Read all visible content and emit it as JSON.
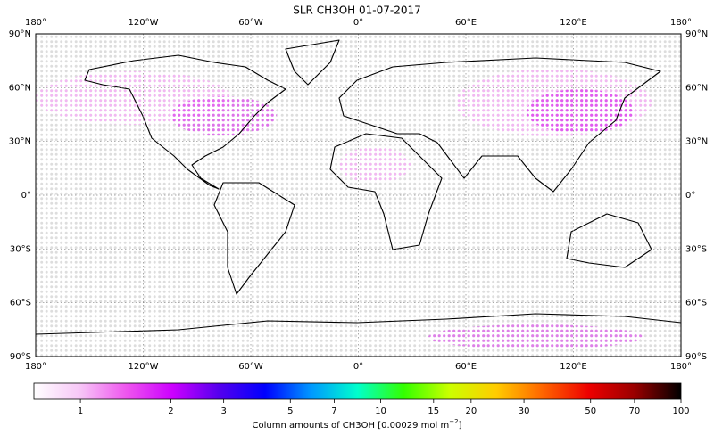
{
  "title": "SLR CH3OH 01-07-2017",
  "map": {
    "lon_ticks": [
      {
        "value": -180,
        "label": "180°"
      },
      {
        "value": -120,
        "label": "120°W"
      },
      {
        "value": -60,
        "label": "60°W"
      },
      {
        "value": 0,
        "label": "0°"
      },
      {
        "value": 60,
        "label": "60°E"
      },
      {
        "value": 120,
        "label": "120°E"
      },
      {
        "value": 180,
        "label": "180°"
      }
    ],
    "lat_ticks": [
      {
        "value": 90,
        "label": "90°N"
      },
      {
        "value": 60,
        "label": "60°N"
      },
      {
        "value": 30,
        "label": "30°N"
      },
      {
        "value": 0,
        "label": "0°"
      },
      {
        "value": -30,
        "label": "30°S"
      },
      {
        "value": -60,
        "label": "60°S"
      },
      {
        "value": -90,
        "label": "90°S"
      }
    ],
    "grid": true
  },
  "colorbar": {
    "scale": "log",
    "lim": [
      0.7,
      100
    ],
    "ticks": [
      1,
      2,
      3,
      5,
      7,
      10,
      15,
      20,
      30,
      50,
      70,
      100
    ],
    "colors": [
      "#ffffff",
      "#f7c6f7",
      "#ee55ee",
      "#cc00ff",
      "#5500ee",
      "#0000ff",
      "#0099ff",
      "#00ffcc",
      "#33ff00",
      "#ccff00",
      "#ffcc00",
      "#ff6600",
      "#ee0000",
      "#990000",
      "#000000"
    ],
    "label": "Column amounts of CH3OH [0.00029 mol m",
    "label_superscript": "−2",
    "label_end": "]"
  }
}
